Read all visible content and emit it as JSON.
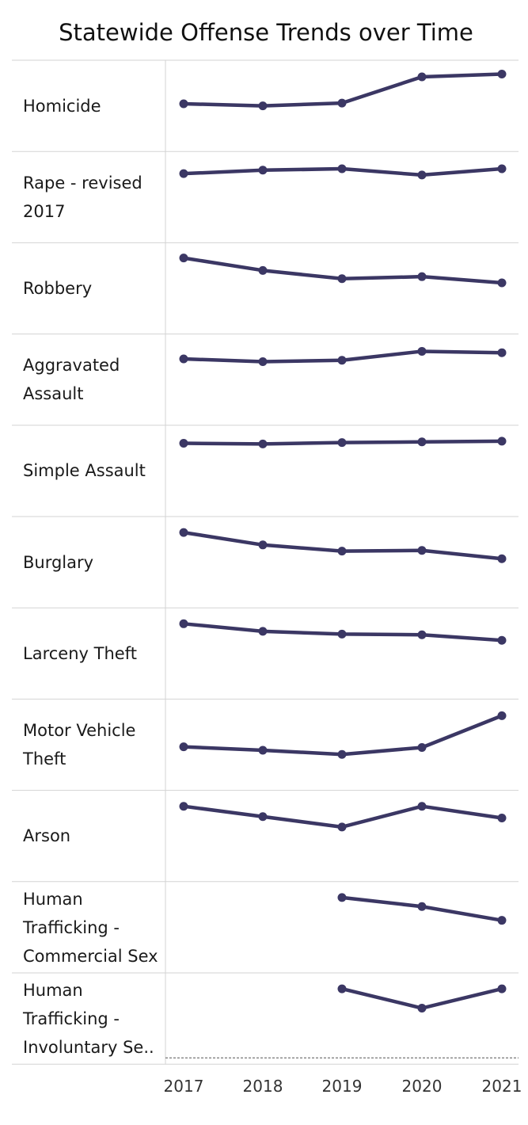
{
  "chart_data": {
    "type": "line",
    "title": "Statewide Offense Trends over Time",
    "x": [
      "2017",
      "2018",
      "2019",
      "2020",
      "2021"
    ],
    "layout": "small multiples, independent y-axis per row, y-axis not shown",
    "color": "#3b3764",
    "panels": [
      {
        "name": "Homicide",
        "values": [
          0.53,
          0.5,
          0.54,
          0.92,
          0.96
        ]
      },
      {
        "name": "Rape - revised 2017",
        "values": [
          0.84,
          0.89,
          0.91,
          0.82,
          0.91
        ]
      },
      {
        "name": "Robbery",
        "values": [
          0.94,
          0.76,
          0.64,
          0.67,
          0.58
        ]
      },
      {
        "name": "Aggravated Assault",
        "values": [
          0.8,
          0.76,
          0.78,
          0.91,
          0.89
        ]
      },
      {
        "name": "Simple Assault",
        "values": [
          0.9,
          0.89,
          0.91,
          0.92,
          0.93
        ]
      },
      {
        "name": "Burglary",
        "values": [
          0.93,
          0.75,
          0.66,
          0.67,
          0.55
        ]
      },
      {
        "name": "Larceny Theft",
        "values": [
          0.93,
          0.82,
          0.78,
          0.77,
          0.69
        ]
      },
      {
        "name": "Motor Vehicle Theft",
        "values": [
          0.47,
          0.42,
          0.36,
          0.46,
          0.92
        ]
      },
      {
        "name": "Arson",
        "values": [
          0.93,
          0.78,
          0.63,
          0.93,
          0.76
        ]
      },
      {
        "name": "Human Trafficking - Commercial Sex",
        "values": [
          null,
          null,
          0.93,
          0.8,
          0.6
        ]
      },
      {
        "name": "Human Trafficking - Involuntary Se..",
        "values": [
          null,
          null,
          0.93,
          0.65,
          0.93
        ]
      }
    ]
  }
}
